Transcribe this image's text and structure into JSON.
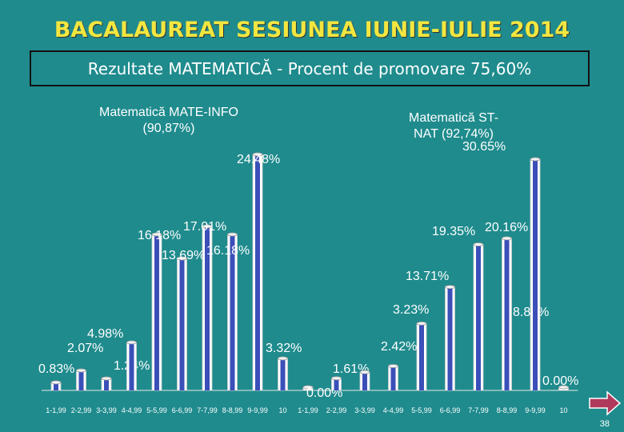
{
  "header": {
    "title": "BACALAUREAT SESIUNEA IUNIE-IULIE 2014",
    "subtitle": "Rezultate MATEMATICĂ - Procent de promovare 75,60%"
  },
  "footer": {
    "page_number": "38"
  },
  "colors": {
    "background": "#1f8b8d",
    "title": "#f2e640",
    "bar_fill": "#ffffff",
    "bar_shade": "#3b4fb8",
    "arrow": "#b03a5c"
  },
  "icons": {
    "next": "right-arrow-icon"
  },
  "chart_data": [
    {
      "type": "bar",
      "title": "Matematică MATE-INFO (90,87%)",
      "title_lines": [
        "Matematică MATE-INFO",
        "(90,87%)"
      ],
      "categories": [
        "1-1,99",
        "2-2,99",
        "3-3,99",
        "4-4,99",
        "5-5,99",
        "6-6,99",
        "7-7,99",
        "8-8,99",
        "9-9,99",
        "10"
      ],
      "values": [
        0.83,
        2.07,
        1.24,
        4.98,
        16.18,
        13.69,
        17.01,
        16.18,
        24.48,
        3.32
      ],
      "labels": [
        "0.83%",
        "2.07%",
        "1.24%",
        "4.98%",
        "16.18%",
        "13.69%",
        "17.01%",
        "16.18%",
        "24.48%",
        "3.32%"
      ]
    },
    {
      "type": "bar",
      "title": "Matematică ST-NAT (92,74%)",
      "title_lines": [
        "Matematică ST-",
        "NAT (92,74%)"
      ],
      "categories": [
        "1-1,99",
        "2-2,99",
        "3-3,99",
        "4-4,99",
        "5-5,99",
        "6-6,99",
        "7-7,99",
        "8-8,99",
        "9-9,99",
        "10"
      ],
      "values": [
        0.0,
        1.61,
        2.42,
        3.23,
        8.87,
        13.71,
        19.35,
        20.16,
        30.65,
        0.0
      ],
      "labels": [
        "0.00%",
        "1.61%",
        "2.42%",
        "3.23%",
        "8.87%",
        "13.71%",
        "19.35%",
        "20.16%",
        "30.65%",
        "0.00%"
      ]
    }
  ]
}
